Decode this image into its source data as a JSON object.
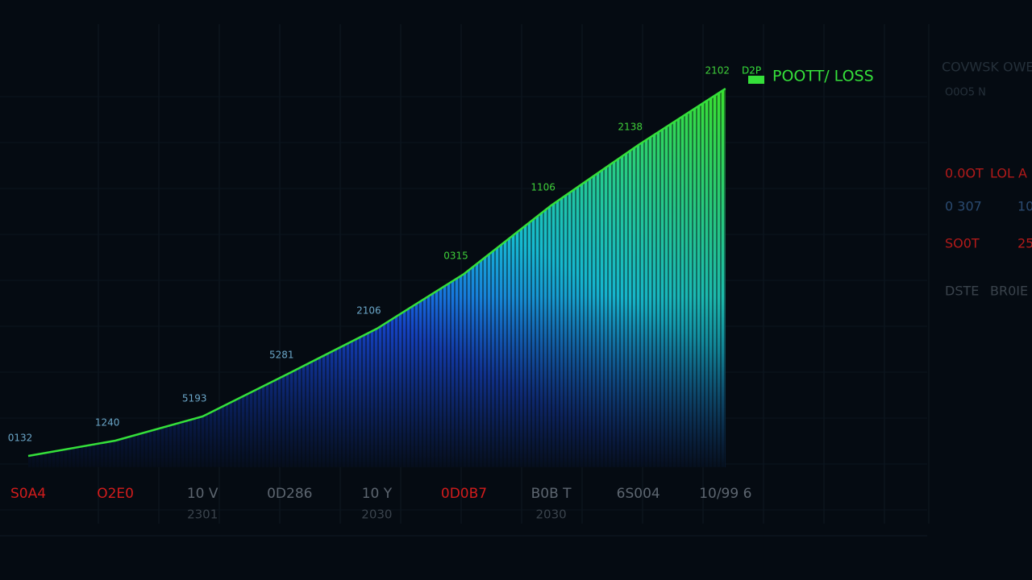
{
  "chart_data": {
    "type": "area",
    "title": "POOTT/ LOSS",
    "legend_marker": "D2P",
    "categories": [
      "S0A4",
      "O2E0",
      "10 V",
      "0D286",
      "10 Y",
      "0D0B7",
      "B0B T",
      "6S004",
      "10/99 6"
    ],
    "category_sublabels": [
      null,
      null,
      "2301",
      null,
      "2030",
      null,
      "2030",
      null,
      null
    ],
    "category_colors": [
      "#d21c1c",
      "#d21c1c",
      "#5d6670",
      "#5d6670",
      "#5d6670",
      "#d21c1c",
      "#5d6670",
      "#5d6670",
      "#5d6670"
    ],
    "values": [
      2.8,
      6.6,
      12.6,
      23.4,
      34.4,
      48,
      65,
      80,
      94
    ],
    "ylim": [
      0,
      100
    ],
    "color": "#35e03a",
    "annotations": [
      "0132",
      "1240",
      "5193",
      "5281",
      "2106",
      "0315",
      "1106",
      "2138",
      "2102"
    ],
    "grid": true
  },
  "side_panel": {
    "title": "COVWSK OWE",
    "subtitle": "O0O5 N",
    "rows": [
      [
        "0.0OT",
        "LOL A"
      ],
      [
        "0 307",
        "10"
      ],
      [
        "SO0T",
        "25"
      ],
      [
        "DSTE",
        "BR0IE"
      ]
    ],
    "row_colors": [
      "#b31a1a",
      "#2a4a70",
      "#b31a1a",
      "#3a434c"
    ]
  }
}
